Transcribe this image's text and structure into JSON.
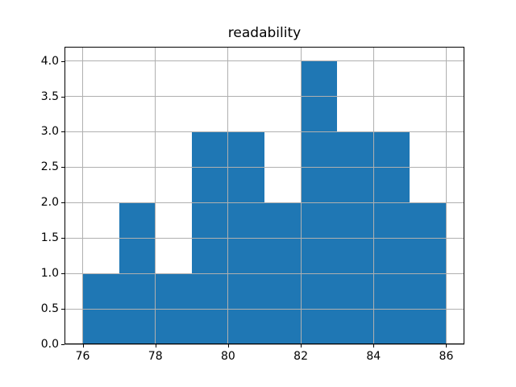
{
  "chart_data": {
    "type": "bar",
    "subtype": "histogram",
    "title": "readability",
    "bin_edges": [
      76,
      77,
      78,
      79,
      80,
      81,
      82,
      83,
      84,
      85,
      86
    ],
    "values": [
      1,
      2,
      1,
      3,
      3,
      2,
      4,
      3,
      3,
      2
    ],
    "xlabel": "",
    "ylabel": "",
    "xlim": [
      75.5,
      86.5
    ],
    "ylim": [
      0,
      4.2
    ],
    "xticks": [
      76,
      78,
      80,
      82,
      84,
      86
    ],
    "xtick_labels": [
      "76",
      "78",
      "80",
      "82",
      "84",
      "86"
    ],
    "yticks": [
      0.0,
      0.5,
      1.0,
      1.5,
      2.0,
      2.5,
      3.0,
      3.5,
      4.0
    ],
    "ytick_labels": [
      "0.0",
      "0.5",
      "1.0",
      "1.5",
      "2.0",
      "2.5",
      "3.0",
      "3.5",
      "4.0"
    ],
    "grid": true,
    "grid_above_bars": true,
    "legend": false,
    "colors": {
      "bar": "#1f77b4",
      "grid": "#b0b0b0",
      "spine": "#000000",
      "background": "#ffffff",
      "text": "#000000"
    }
  }
}
